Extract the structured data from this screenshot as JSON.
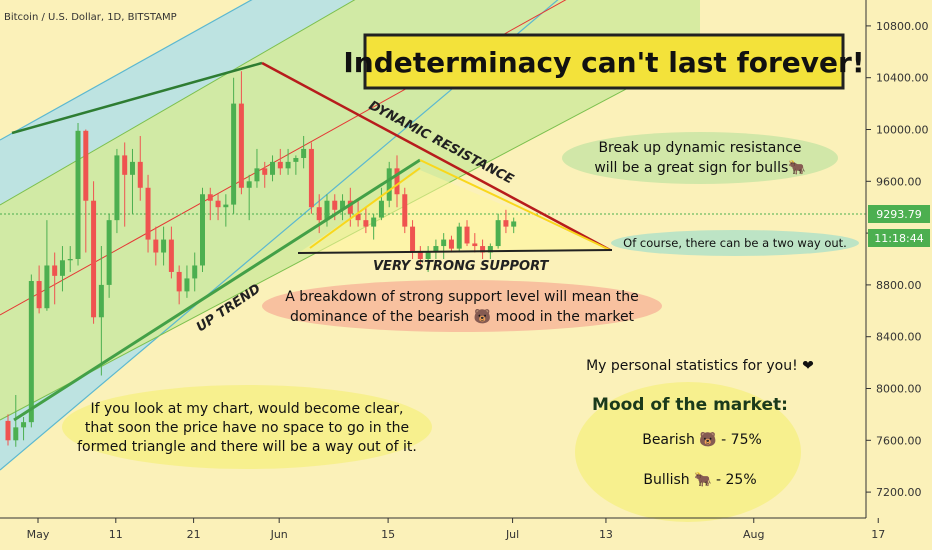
{
  "chart_data": {
    "type": "candlestick",
    "title": "Bitcoin / U.S. Dollar, 1D, BITSTAMP",
    "headline": "Indeterminacy can't last forever!",
    "y_axis": {
      "ylim": [
        7000,
        11000
      ],
      "ticks": [
        "10800.00",
        "10400.00",
        "10000.00",
        "9600.00",
        "9200.00",
        "8800.00",
        "8400.00",
        "8000.00",
        "7600.00",
        "7200.00"
      ]
    },
    "x_axis": {
      "ticks": [
        {
          "label": "May",
          "day": 0
        },
        {
          "label": "11",
          "day": 10
        },
        {
          "label": "21",
          "day": 20
        },
        {
          "label": "Jun",
          "day": 31
        },
        {
          "label": "15",
          "day": 45
        },
        {
          "label": "Jul",
          "day": 61
        },
        {
          "label": "13",
          "day": 73
        },
        {
          "label": "Aug",
          "day": 92
        },
        {
          "label": "17",
          "day": 108
        }
      ]
    },
    "current_price": "9293.79",
    "countdown": "11:18:44",
    "colors": {
      "up": "#4caf50",
      "down": "#ef5350",
      "background": "#fbf1b9",
      "channel_blue": "#b2e0e8",
      "channel_green": "#d3ea9e",
      "trend_green": "#43a047",
      "resistance": "#b71c1c",
      "support": "#212121"
    },
    "candles": [
      {
        "o": 7750,
        "h": 7800,
        "l": 7560,
        "c": 7600
      },
      {
        "o": 7600,
        "h": 7950,
        "l": 7550,
        "c": 7700
      },
      {
        "o": 7700,
        "h": 7780,
        "l": 7600,
        "c": 7740
      },
      {
        "o": 7740,
        "h": 8880,
        "l": 7700,
        "c": 8830
      },
      {
        "o": 8830,
        "h": 8950,
        "l": 8580,
        "c": 8620
      },
      {
        "o": 8620,
        "h": 9300,
        "l": 8600,
        "c": 8950
      },
      {
        "o": 8950,
        "h": 9050,
        "l": 8650,
        "c": 8870
      },
      {
        "o": 8870,
        "h": 9100,
        "l": 8750,
        "c": 8990
      },
      {
        "o": 8990,
        "h": 9100,
        "l": 8900,
        "c": 9000
      },
      {
        "o": 9000,
        "h": 10050,
        "l": 8950,
        "c": 9990
      },
      {
        "o": 9990,
        "h": 10000,
        "l": 9050,
        "c": 9450
      },
      {
        "o": 9450,
        "h": 9600,
        "l": 8500,
        "c": 8550
      },
      {
        "o": 8550,
        "h": 9100,
        "l": 8100,
        "c": 8800
      },
      {
        "o": 8800,
        "h": 9350,
        "l": 8700,
        "c": 9300
      },
      {
        "o": 9300,
        "h": 9850,
        "l": 9200,
        "c": 9800
      },
      {
        "o": 9800,
        "h": 9900,
        "l": 9250,
        "c": 9650
      },
      {
        "o": 9650,
        "h": 9850,
        "l": 9350,
        "c": 9750
      },
      {
        "o": 9750,
        "h": 9950,
        "l": 9450,
        "c": 9550
      },
      {
        "o": 9550,
        "h": 9650,
        "l": 9050,
        "c": 9150
      },
      {
        "o": 9150,
        "h": 9250,
        "l": 8950,
        "c": 9050
      },
      {
        "o": 9050,
        "h": 9250,
        "l": 8950,
        "c": 9150
      },
      {
        "o": 9150,
        "h": 9250,
        "l": 8850,
        "c": 8900
      },
      {
        "o": 8900,
        "h": 8950,
        "l": 8650,
        "c": 8750
      },
      {
        "o": 8750,
        "h": 8950,
        "l": 8700,
        "c": 8850
      },
      {
        "o": 8850,
        "h": 9050,
        "l": 8750,
        "c": 8950
      },
      {
        "o": 8950,
        "h": 9550,
        "l": 8900,
        "c": 9500
      },
      {
        "o": 9500,
        "h": 9550,
        "l": 9300,
        "c": 9450
      },
      {
        "o": 9450,
        "h": 9500,
        "l": 9300,
        "c": 9400
      },
      {
        "o": 9400,
        "h": 9500,
        "l": 9250,
        "c": 9420
      },
      {
        "o": 9420,
        "h": 10400,
        "l": 9350,
        "c": 10200
      },
      {
        "o": 10200,
        "h": 10450,
        "l": 9500,
        "c": 9550
      },
      {
        "o": 9550,
        "h": 9650,
        "l": 9300,
        "c": 9600
      },
      {
        "o": 9600,
        "h": 9850,
        "l": 9550,
        "c": 9700
      },
      {
        "o": 9700,
        "h": 9750,
        "l": 9550,
        "c": 9650
      },
      {
        "o": 9650,
        "h": 9800,
        "l": 9600,
        "c": 9750
      },
      {
        "o": 9750,
        "h": 9850,
        "l": 9650,
        "c": 9700
      },
      {
        "o": 9700,
        "h": 9850,
        "l": 9650,
        "c": 9750
      },
      {
        "o": 9750,
        "h": 9800,
        "l": 9650,
        "c": 9780
      },
      {
        "o": 9780,
        "h": 9950,
        "l": 9700,
        "c": 9850
      },
      {
        "o": 9850,
        "h": 9900,
        "l": 9350,
        "c": 9400
      },
      {
        "o": 9400,
        "h": 9500,
        "l": 9200,
        "c": 9300
      },
      {
        "o": 9300,
        "h": 9500,
        "l": 9250,
        "c": 9450
      },
      {
        "o": 9450,
        "h": 9500,
        "l": 9300,
        "c": 9380
      },
      {
        "o": 9380,
        "h": 9500,
        "l": 9300,
        "c": 9450
      },
      {
        "o": 9450,
        "h": 9550,
        "l": 9250,
        "c": 9350
      },
      {
        "o": 9350,
        "h": 9450,
        "l": 9250,
        "c": 9300
      },
      {
        "o": 9300,
        "h": 9400,
        "l": 9200,
        "c": 9250
      },
      {
        "o": 9250,
        "h": 9350,
        "l": 9150,
        "c": 9320
      },
      {
        "o": 9320,
        "h": 9550,
        "l": 9300,
        "c": 9450
      },
      {
        "o": 9450,
        "h": 9750,
        "l": 9400,
        "c": 9700
      },
      {
        "o": 9700,
        "h": 9800,
        "l": 9400,
        "c": 9500
      },
      {
        "o": 9500,
        "h": 9550,
        "l": 9200,
        "c": 9250
      },
      {
        "o": 9250,
        "h": 9300,
        "l": 9000,
        "c": 9050
      },
      {
        "o": 9050,
        "h": 9100,
        "l": 8950,
        "c": 9000
      },
      {
        "o": 9000,
        "h": 9100,
        "l": 8900,
        "c": 9050
      },
      {
        "o": 9050,
        "h": 9150,
        "l": 9000,
        "c": 9100
      },
      {
        "o": 9100,
        "h": 9200,
        "l": 9000,
        "c": 9150
      },
      {
        "o": 9150,
        "h": 9180,
        "l": 9050,
        "c": 9080
      },
      {
        "o": 9080,
        "h": 9280,
        "l": 9050,
        "c": 9250
      },
      {
        "o": 9250,
        "h": 9300,
        "l": 9100,
        "c": 9120
      },
      {
        "o": 9120,
        "h": 9200,
        "l": 9050,
        "c": 9100
      },
      {
        "o": 9100,
        "h": 9150,
        "l": 9000,
        "c": 9050
      },
      {
        "o": 9050,
        "h": 9120,
        "l": 9000,
        "c": 9100
      },
      {
        "o": 9100,
        "h": 9350,
        "l": 9080,
        "c": 9300
      },
      {
        "o": 9300,
        "h": 9380,
        "l": 9200,
        "c": 9250
      },
      {
        "o": 9250,
        "h": 9320,
        "l": 9200,
        "c": 9290
      }
    ]
  },
  "labels": {
    "dynamic_resistance": "DYNAMIC RESISTANCE",
    "very_strong_support": "VERY STRONG SUPPORT",
    "up_trend": "UP TREND"
  },
  "notes": {
    "break_up_line1": "Break up dynamic resistance",
    "break_up_line2": "will be a great sign for bulls🐂",
    "two_way": "Of course, there can be a two way out.",
    "breakdown_line1": "A breakdown of strong support level will mean the",
    "breakdown_line2": "dominance of the bearish 🐻 mood in the market",
    "triangle_line1": "If you look at my chart, would become clear,",
    "triangle_line2": "that soon the price have no space to go in the",
    "triangle_line3": "formed triangle and there will be a way out of it.",
    "stats_title": "My personal statistics for you! ❤",
    "mood_title": "Mood of the market:",
    "bearish": "Bearish 🐻 - 75%",
    "bullish": "Bullish 🐂 - 25%"
  },
  "mood": {
    "bearish_pct": 75,
    "bullish_pct": 25
  }
}
